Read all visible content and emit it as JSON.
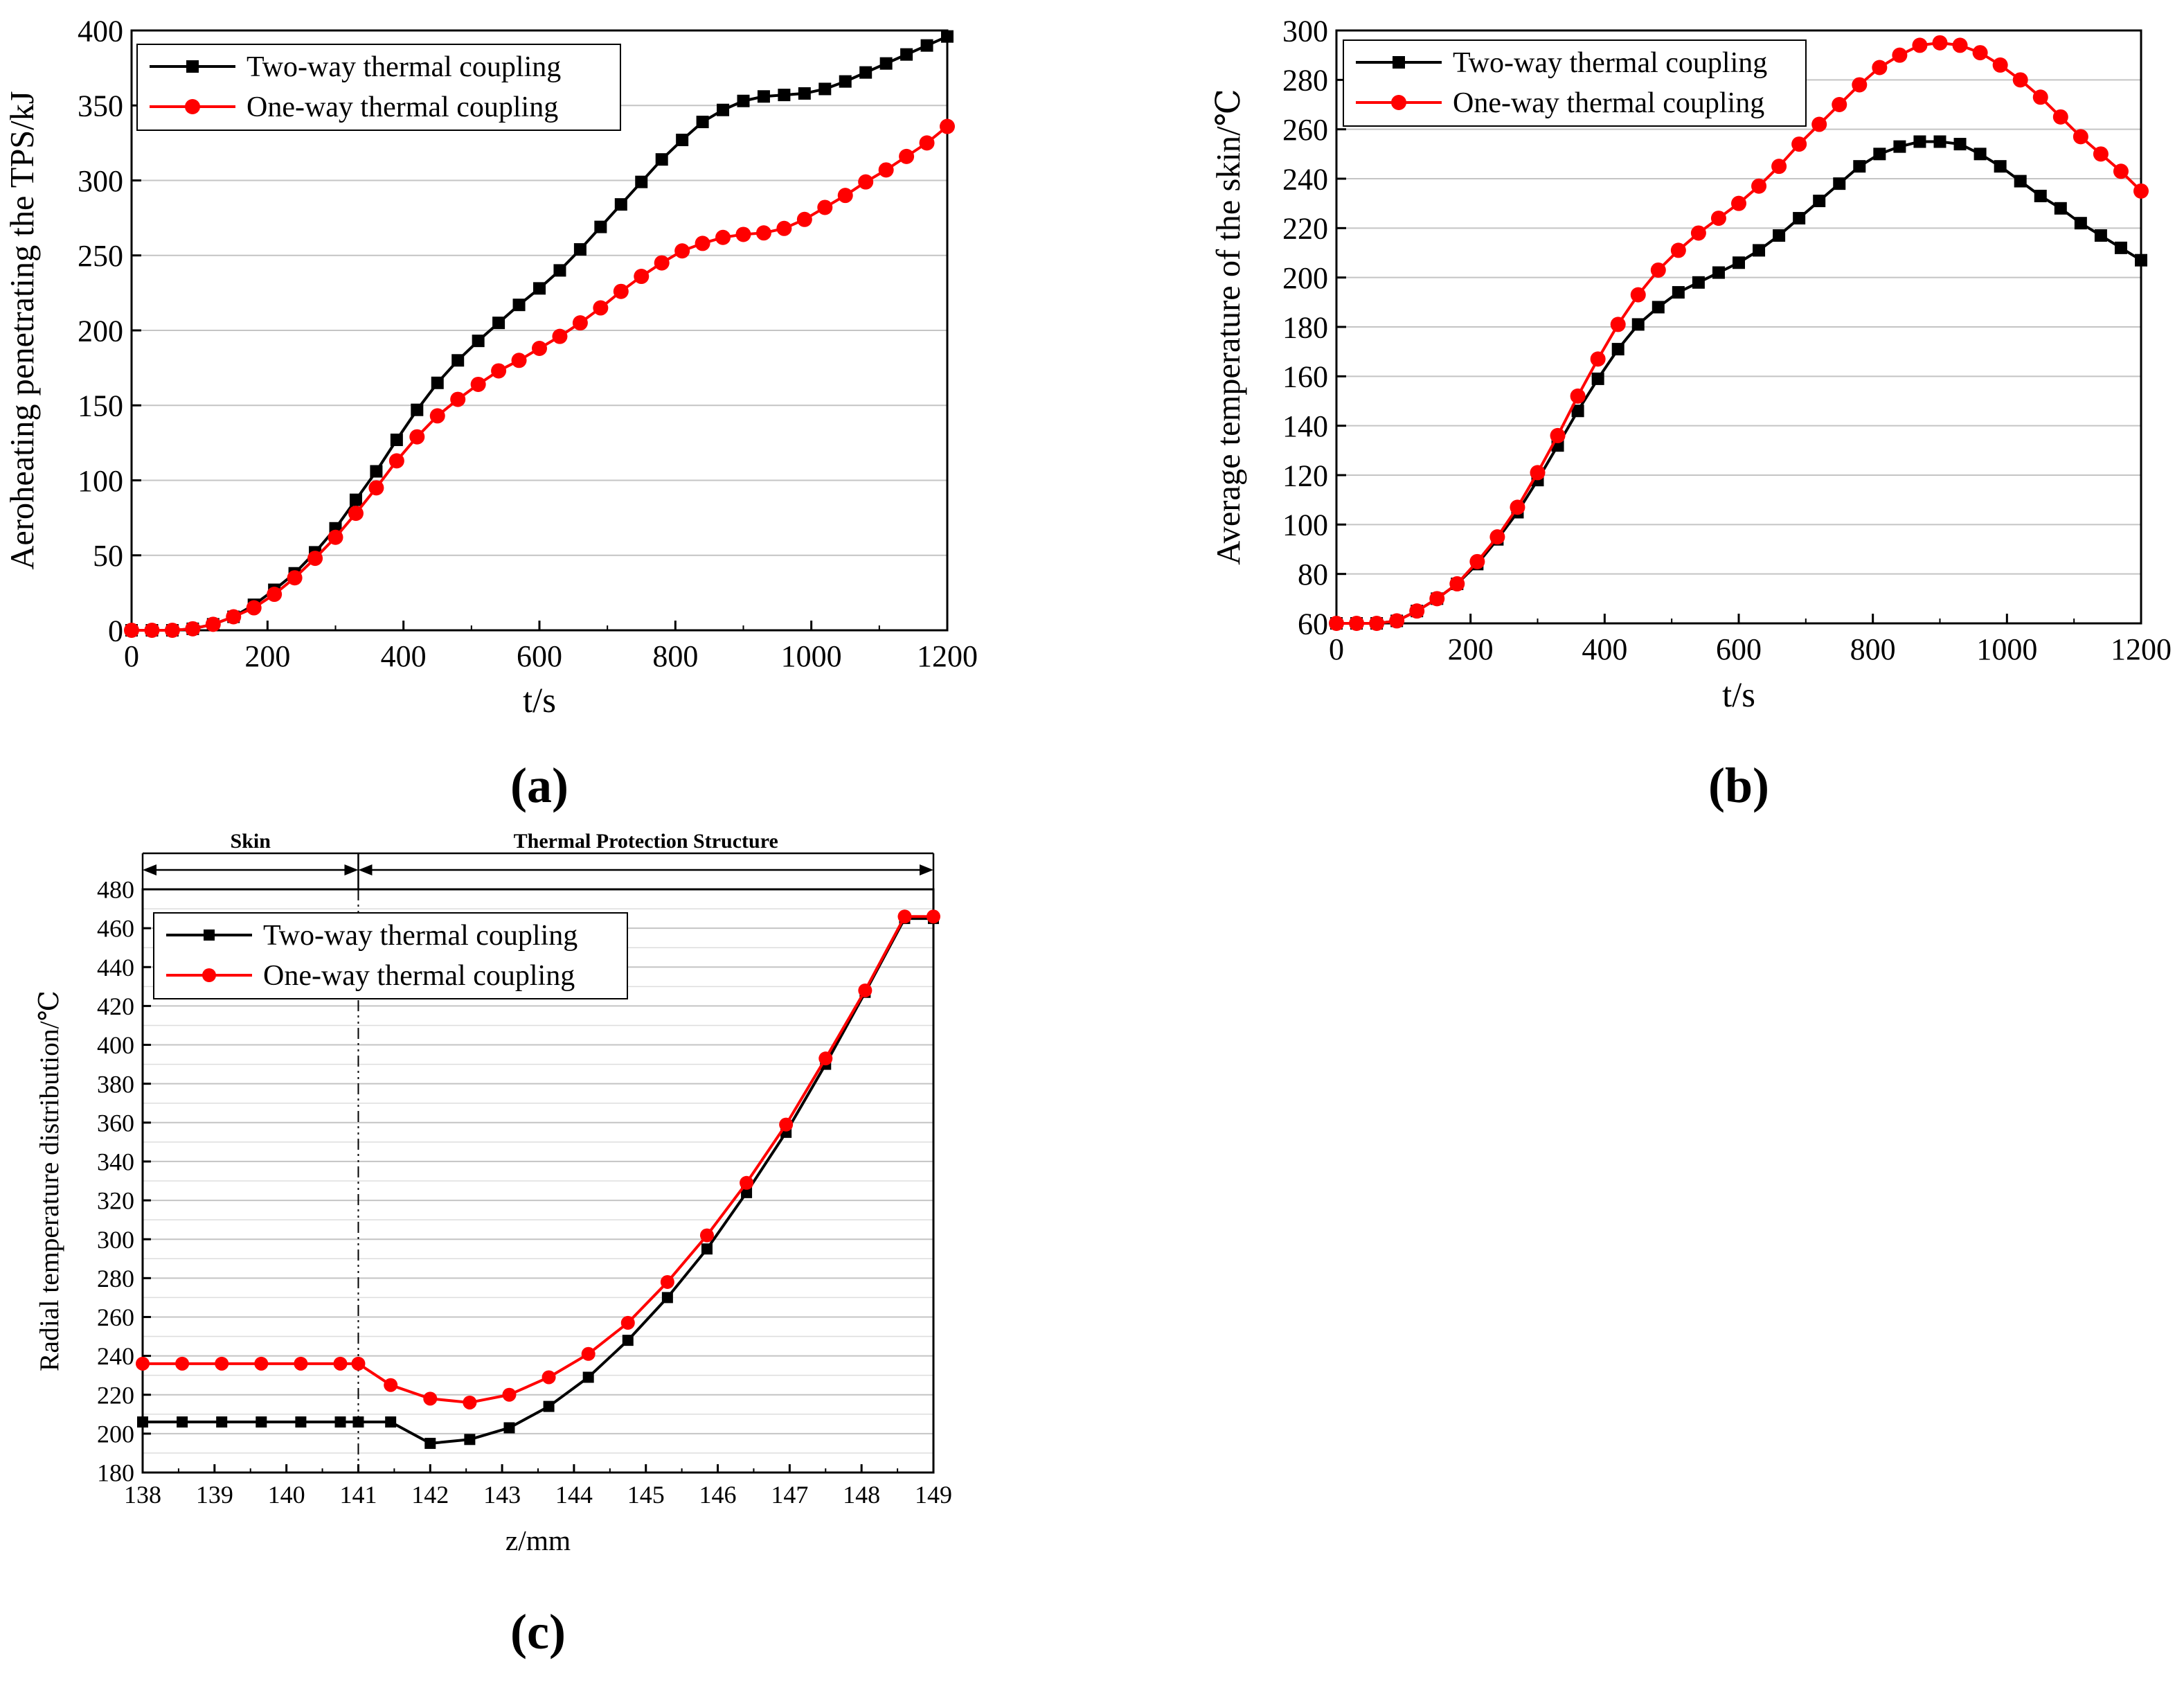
{
  "chart_data": [
    {
      "type": "line",
      "panel_label": "(a)",
      "xlabel": "t/s",
      "ylabel": "Aeroheating penetrating the TPS/kJ",
      "xlim": [
        0,
        1200
      ],
      "ylim": [
        0,
        400
      ],
      "xticks": [
        0,
        200,
        400,
        600,
        800,
        1000,
        1200
      ],
      "yticks": [
        0,
        50,
        100,
        150,
        200,
        250,
        300,
        350,
        400
      ],
      "grid": true,
      "legend": "top-left",
      "series": [
        {
          "name": "Two-way thermal coupling",
          "color": "#000000",
          "marker": "square",
          "x": [
            0,
            30,
            60,
            90,
            120,
            150,
            180,
            210,
            240,
            270,
            300,
            330,
            360,
            390,
            420,
            450,
            480,
            510,
            540,
            570,
            600,
            630,
            660,
            690,
            720,
            750,
            780,
            810,
            840,
            870,
            900,
            930,
            960,
            990,
            1020,
            1050,
            1080,
            1110,
            1140,
            1170,
            1200
          ],
          "y": [
            0,
            0,
            0,
            1,
            4,
            9,
            17,
            27,
            38,
            52,
            68,
            87,
            106,
            127,
            147,
            165,
            180,
            193,
            205,
            217,
            228,
            240,
            254,
            269,
            284,
            299,
            314,
            327,
            339,
            347,
            353,
            356,
            357,
            358,
            361,
            366,
            372,
            378,
            384,
            390,
            396
          ]
        },
        {
          "name": "One-way thermal coupling",
          "color": "#ff0000",
          "marker": "circle",
          "x": [
            0,
            30,
            60,
            90,
            120,
            150,
            180,
            210,
            240,
            270,
            300,
            330,
            360,
            390,
            420,
            450,
            480,
            510,
            540,
            570,
            600,
            630,
            660,
            690,
            720,
            750,
            780,
            810,
            840,
            870,
            900,
            930,
            960,
            990,
            1020,
            1050,
            1080,
            1110,
            1140,
            1170,
            1200
          ],
          "y": [
            0,
            0,
            0,
            1,
            4,
            9,
            15,
            24,
            35,
            48,
            62,
            78,
            95,
            113,
            129,
            143,
            154,
            164,
            173,
            180,
            188,
            196,
            205,
            215,
            226,
            236,
            245,
            253,
            258,
            262,
            264,
            265,
            268,
            274,
            282,
            290,
            299,
            307,
            316,
            325,
            336
          ]
        }
      ]
    },
    {
      "type": "line",
      "panel_label": "(b)",
      "xlabel": "t/s",
      "ylabel": "Average temperature of the skin/℃",
      "xlim": [
        0,
        1200
      ],
      "ylim": [
        60,
        300
      ],
      "xticks": [
        0,
        200,
        400,
        600,
        800,
        1000,
        1200
      ],
      "yticks": [
        60,
        80,
        100,
        120,
        140,
        160,
        180,
        200,
        220,
        240,
        260,
        280,
        300
      ],
      "grid": true,
      "legend": "top-left",
      "series": [
        {
          "name": "Two-way thermal coupling",
          "color": "#000000",
          "marker": "square",
          "x": [
            0,
            30,
            60,
            90,
            120,
            150,
            180,
            210,
            240,
            270,
            300,
            330,
            360,
            390,
            420,
            450,
            480,
            510,
            540,
            570,
            600,
            630,
            660,
            690,
            720,
            750,
            780,
            810,
            840,
            870,
            900,
            930,
            960,
            990,
            1020,
            1050,
            1080,
            1110,
            1140,
            1170,
            1200
          ],
          "y": [
            60,
            60,
            60,
            61,
            65,
            70,
            76,
            84,
            94,
            105,
            118,
            132,
            146,
            159,
            171,
            181,
            188,
            194,
            198,
            202,
            206,
            211,
            217,
            224,
            231,
            238,
            245,
            250,
            253,
            255,
            255,
            254,
            250,
            245,
            239,
            233,
            228,
            222,
            217,
            212,
            207
          ]
        },
        {
          "name": "One-way thermal coupling",
          "color": "#ff0000",
          "marker": "circle",
          "x": [
            0,
            30,
            60,
            90,
            120,
            150,
            180,
            210,
            240,
            270,
            300,
            330,
            360,
            390,
            420,
            450,
            480,
            510,
            540,
            570,
            600,
            630,
            660,
            690,
            720,
            750,
            780,
            810,
            840,
            870,
            900,
            930,
            960,
            990,
            1020,
            1050,
            1080,
            1110,
            1140,
            1170,
            1200
          ],
          "y": [
            60,
            60,
            60,
            61,
            65,
            70,
            76,
            85,
            95,
            107,
            121,
            136,
            152,
            167,
            181,
            193,
            203,
            211,
            218,
            224,
            230,
            237,
            245,
            254,
            262,
            270,
            278,
            285,
            290,
            294,
            295,
            294,
            291,
            286,
            280,
            273,
            265,
            257,
            250,
            243,
            235
          ]
        }
      ]
    },
    {
      "type": "line",
      "panel_label": "(c)",
      "xlabel": "z/mm",
      "ylabel": "Radial temperature distribution/℃",
      "xlim": [
        138,
        149
      ],
      "ylim": [
        180,
        480
      ],
      "xticks": [
        138,
        139,
        140,
        141,
        142,
        143,
        144,
        145,
        146,
        147,
        148,
        149
      ],
      "yticks": [
        180,
        200,
        220,
        240,
        260,
        280,
        300,
        320,
        340,
        360,
        380,
        400,
        420,
        440,
        460,
        480
      ],
      "grid": true,
      "legend": "top-left",
      "region_boundary": 141,
      "region_labels": [
        "Skin",
        "Thermal Protection Structure"
      ],
      "series": [
        {
          "name": "Two-way thermal coupling",
          "color": "#000000",
          "marker": "square",
          "x": [
            138,
            138.55,
            139.1,
            139.65,
            140.2,
            140.75,
            141,
            141.45,
            142,
            142.55,
            143.1,
            143.65,
            144.2,
            144.75,
            145.3,
            145.85,
            146.4,
            146.95,
            147.5,
            148.05,
            148.6,
            149
          ],
          "y": [
            206,
            206,
            206,
            206,
            206,
            206,
            206,
            206,
            195,
            197,
            203,
            214,
            229,
            248,
            270,
            295,
            324,
            355,
            390,
            427,
            465,
            465
          ]
        },
        {
          "name": "One-way thermal coupling",
          "color": "#ff0000",
          "marker": "circle",
          "x": [
            138,
            138.55,
            139.1,
            139.65,
            140.2,
            140.75,
            141,
            141.45,
            142,
            142.55,
            143.1,
            143.65,
            144.2,
            144.75,
            145.3,
            145.85,
            146.4,
            146.95,
            147.5,
            148.05,
            148.6,
            149
          ],
          "y": [
            236,
            236,
            236,
            236,
            236,
            236,
            236,
            225,
            218,
            216,
            220,
            229,
            241,
            257,
            278,
            302,
            329,
            359,
            393,
            428,
            466,
            466
          ]
        }
      ]
    }
  ]
}
